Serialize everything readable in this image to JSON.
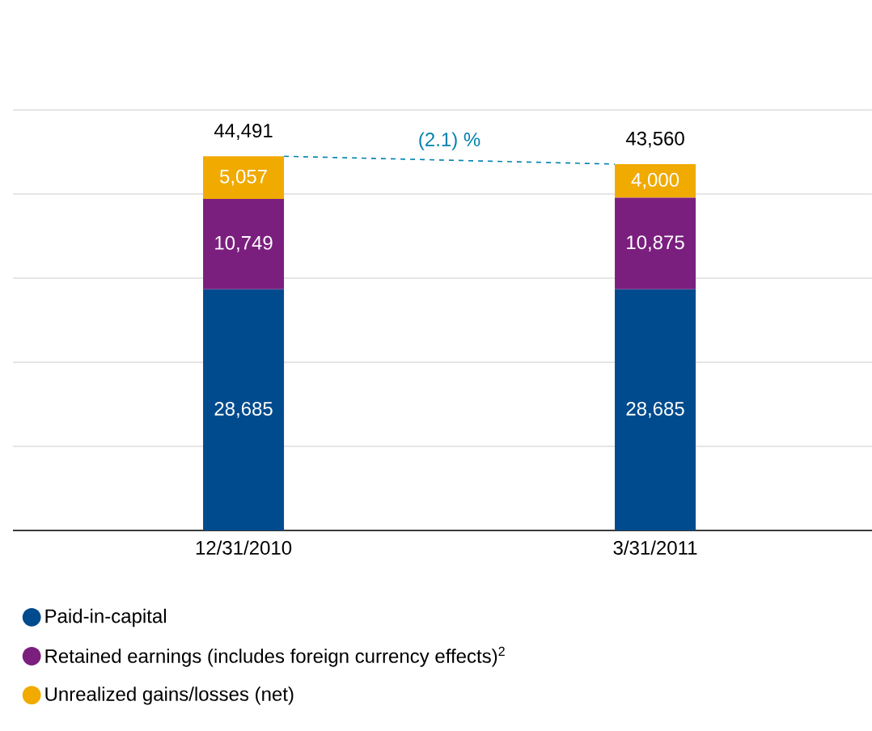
{
  "chart_data": {
    "type": "bar",
    "stacked": true,
    "categories": [
      "12/31/2010",
      "3/31/2011"
    ],
    "series": [
      {
        "name": "Paid-in-capital",
        "color": "#004b8d",
        "values": [
          28685,
          28685
        ],
        "value_labels": [
          "28,685",
          "28,685"
        ]
      },
      {
        "name": "Retained earnings (includes foreign currency effects)$^{2}$",
        "color": "#7b1f7f",
        "values": [
          10749,
          10875
        ],
        "value_labels": [
          "10,749",
          "10,875"
        ]
      },
      {
        "name": "Unrealized gains/losses (net)",
        "color": "#f0aa00",
        "values": [
          5057,
          4000
        ],
        "value_labels": [
          "5,057",
          "4,000"
        ]
      }
    ],
    "totals": [
      "44,491",
      "43,560"
    ],
    "annotations": [
      "(2.1) %"
    ],
    "ylim": [
      0,
      50000
    ],
    "yticks": [
      {
        "value": 0,
        "label": null
      },
      {
        "value": 10000,
        "label": null
      },
      {
        "value": 20000,
        "label": null
      },
      {
        "value": 30000,
        "label": null
      },
      {
        "value": 40000,
        "label": null
      },
      {
        "value": 50000,
        "label": null
      }
    ],
    "tick_labels": "x",
    "grid": "y",
    "legend": "bottom"
  }
}
